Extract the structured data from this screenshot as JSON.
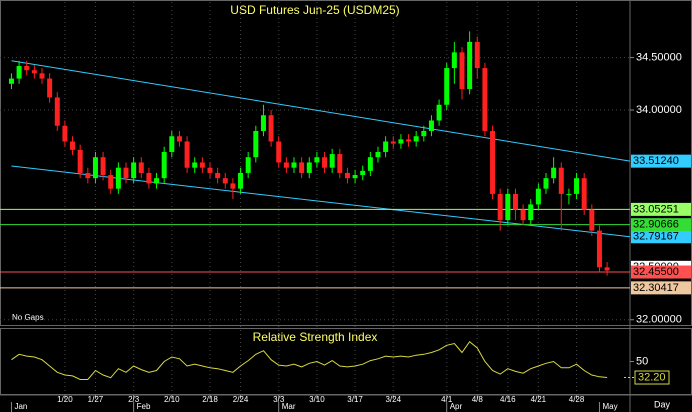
{
  "chart_data": [
    {
      "type": "candlestick",
      "title": "USD  Futures  Jun-25  (USDM25)",
      "note": "No Gaps",
      "x_unit_label": "Day",
      "open": [
        34.25,
        34.3,
        34.42,
        34.38,
        34.35,
        34.3,
        34.12,
        33.85,
        33.7,
        33.62,
        33.4,
        33.35,
        33.55,
        33.38,
        33.25,
        33.45,
        33.35,
        33.5,
        33.4,
        33.3,
        33.35,
        33.6,
        33.75,
        33.7,
        33.45,
        33.5,
        33.45,
        33.4,
        33.35,
        33.3,
        33.25,
        33.4,
        33.55,
        33.8,
        33.95,
        33.7,
        33.5,
        33.45,
        33.5,
        33.4,
        33.5,
        33.55,
        33.45,
        33.58,
        33.4,
        33.35,
        33.38,
        33.42,
        33.55,
        33.6,
        33.7,
        33.68,
        33.72,
        33.7,
        33.75,
        33.8,
        33.9,
        34.05,
        34.4,
        34.55,
        34.2,
        34.65,
        34.4,
        33.8,
        33.2,
        32.95,
        33.2,
        33.05,
        32.95,
        33.1,
        33.25,
        33.35,
        33.45,
        33.2,
        33.2,
        33.35,
        33.05,
        32.85,
        32.5
      ],
      "high": [
        34.35,
        34.47,
        34.47,
        34.43,
        34.4,
        34.35,
        34.17,
        33.9,
        33.75,
        33.67,
        33.45,
        33.6,
        33.6,
        33.43,
        33.5,
        33.5,
        33.55,
        33.55,
        33.45,
        33.4,
        33.65,
        33.8,
        33.8,
        33.75,
        33.55,
        33.55,
        33.5,
        33.45,
        33.4,
        33.35,
        33.45,
        33.6,
        33.85,
        34.05,
        34.0,
        33.75,
        33.55,
        33.55,
        33.55,
        33.55,
        33.6,
        33.6,
        33.63,
        33.63,
        33.45,
        33.43,
        33.47,
        33.6,
        33.65,
        33.75,
        33.75,
        33.77,
        33.77,
        33.8,
        33.85,
        33.95,
        34.1,
        34.45,
        34.65,
        34.6,
        34.75,
        34.7,
        34.45,
        33.85,
        33.25,
        33.25,
        33.25,
        33.1,
        33.15,
        33.3,
        33.4,
        33.55,
        33.5,
        33.25,
        33.4,
        33.4,
        33.1,
        32.9,
        32.55
      ],
      "low": [
        34.2,
        34.25,
        34.33,
        34.3,
        34.25,
        34.07,
        33.8,
        33.65,
        33.57,
        33.35,
        33.3,
        33.3,
        33.33,
        33.2,
        33.2,
        33.3,
        33.3,
        33.35,
        33.25,
        33.25,
        33.3,
        33.55,
        33.65,
        33.4,
        33.4,
        33.4,
        33.35,
        33.3,
        33.25,
        33.15,
        33.2,
        33.35,
        33.5,
        33.75,
        33.65,
        33.45,
        33.4,
        33.4,
        33.35,
        33.35,
        33.45,
        33.4,
        33.4,
        33.35,
        33.3,
        33.3,
        33.33,
        33.37,
        33.5,
        33.55,
        33.63,
        33.63,
        33.65,
        33.65,
        33.7,
        33.75,
        33.85,
        34.0,
        34.25,
        34.1,
        34.15,
        34.3,
        33.75,
        33.15,
        32.85,
        32.9,
        32.95,
        32.9,
        32.9,
        33.05,
        33.2,
        33.3,
        32.85,
        33.1,
        33.15,
        33.0,
        32.8,
        32.45,
        32.42
      ],
      "close": [
        34.3,
        34.42,
        34.38,
        34.35,
        34.3,
        34.12,
        33.85,
        33.7,
        33.62,
        33.4,
        33.35,
        33.55,
        33.38,
        33.25,
        33.45,
        33.35,
        33.5,
        33.4,
        33.3,
        33.35,
        33.6,
        33.75,
        33.7,
        33.45,
        33.5,
        33.45,
        33.4,
        33.35,
        33.3,
        33.25,
        33.4,
        33.55,
        33.8,
        33.95,
        33.7,
        33.5,
        33.45,
        33.5,
        33.4,
        33.5,
        33.55,
        33.45,
        33.58,
        33.4,
        33.35,
        33.38,
        33.42,
        33.55,
        33.6,
        33.7,
        33.68,
        33.72,
        33.7,
        33.75,
        33.8,
        33.9,
        34.05,
        34.4,
        34.55,
        34.2,
        34.65,
        34.4,
        33.8,
        33.2,
        32.95,
        33.2,
        33.05,
        32.95,
        33.1,
        33.25,
        33.35,
        33.45,
        33.2,
        33.2,
        33.35,
        33.05,
        32.85,
        32.5,
        32.47
      ],
      "up_color": "#00ff00",
      "down_color": "#ff2020",
      "xlim": [
        -1.5,
        81
      ],
      "ylim": [
        31.95,
        35.03
      ],
      "yticks": [
        {
          "value": 32,
          "label": "32.00000"
        },
        {
          "value": 34,
          "label": "34.00000"
        },
        {
          "value": 34.5,
          "label": "34.50000"
        }
      ],
      "xticks": [
        {
          "value": 7,
          "label": "1/20"
        },
        {
          "value": 11,
          "label": "1/27"
        },
        {
          "value": 16,
          "label": "2/3"
        },
        {
          "value": 21,
          "label": "2/10"
        },
        {
          "value": 26,
          "label": "2/18"
        },
        {
          "value": 30,
          "label": "2/24"
        },
        {
          "value": 35,
          "label": "3/3"
        },
        {
          "value": 40,
          "label": "3/10"
        },
        {
          "value": 45,
          "label": "3/17"
        },
        {
          "value": 50,
          "label": "3/24"
        },
        {
          "value": 57,
          "label": "4/1"
        },
        {
          "value": 61,
          "label": "4/8"
        },
        {
          "value": 65,
          "label": "4/16"
        },
        {
          "value": 69,
          "label": "4/21"
        },
        {
          "value": 74,
          "label": "4/28"
        }
      ],
      "month_ticks": [
        {
          "value": 0,
          "label": "Jan"
        },
        {
          "value": 16,
          "label": "Feb"
        },
        {
          "value": 35,
          "label": "Mar"
        },
        {
          "value": 57,
          "label": "Apr"
        },
        {
          "value": 77,
          "label": "May"
        }
      ],
      "grid": true,
      "trendlines": [
        {
          "x": [
            0,
            81
          ],
          "y": [
            34.47,
            33.5124
          ],
          "label": "33.51240",
          "color": "#33ccff"
        },
        {
          "x": [
            0,
            81
          ],
          "y": [
            33.466,
            32.79167
          ],
          "label": "32.79167",
          "color": "#33ccff"
        }
      ],
      "levels": [
        {
          "value": 33.05251,
          "label": "33.05251",
          "color": "#99ff66",
          "line": true
        },
        {
          "value": 32.90666,
          "label": "32.90666",
          "color": "#33dd33",
          "line": true
        },
        {
          "value": 32.5,
          "label": "32.50000",
          "color": "#ffffff",
          "line": false
        },
        {
          "value": 32.455,
          "label": "32.45500",
          "color": "#ff5050",
          "line": true
        },
        {
          "value": 32.30417,
          "label": "32.30417",
          "color": "#f0c8a0",
          "line": true
        }
      ]
    },
    {
      "type": "line",
      "title": "Relative Strength Index",
      "color": "#d8d840",
      "values": [
        52,
        58,
        56,
        55,
        52,
        45,
        38,
        35,
        34,
        30,
        30,
        40,
        35,
        32,
        42,
        38,
        45,
        41,
        38,
        40,
        50,
        55,
        53,
        45,
        47,
        45,
        43,
        42,
        40,
        38,
        45,
        51,
        58,
        62,
        52,
        46,
        45,
        47,
        44,
        48,
        50,
        46,
        51,
        45,
        44,
        45,
        47,
        51,
        53,
        56,
        55,
        56,
        55,
        57,
        58,
        60,
        63,
        68,
        70,
        60,
        72,
        65,
        50,
        40,
        36,
        42,
        39,
        37,
        42,
        45,
        48,
        50,
        43,
        43,
        47,
        40,
        35,
        33,
        32.2
      ],
      "xlim": [
        -1.5,
        81
      ],
      "ylim": [
        15,
        85
      ],
      "yticks": [
        50
      ],
      "annotations": [
        {
          "value": 32.2,
          "label": "32.20"
        }
      ]
    }
  ]
}
